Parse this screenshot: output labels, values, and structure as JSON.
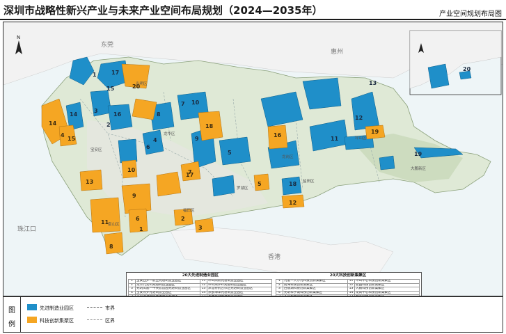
{
  "title": "深圳市战略性新兴产业与未来产业空间布局规划（2024—2035年）",
  "subtitle": "产业空间规划布局图",
  "colors": {
    "advanced": "#1f8fc9",
    "tech": "#f5a623",
    "land": "#dfe9d6",
    "sea": "#eef5f7"
  },
  "map_labels": {
    "pearl_river": "珠江口",
    "dongguan": "东莞",
    "huizhou": "惠州",
    "hongkong": "香港",
    "hk_sea": "珠江",
    "districts": [
      "宝安区",
      "光明区",
      "南山区",
      "福田区",
      "罗湖区",
      "龙华区",
      "龙岗区",
      "坪山区",
      "盐田区",
      "大鹏新区"
    ]
  },
  "advanced_labels": [
    "1",
    "2",
    "3",
    "4",
    "5",
    "6",
    "7",
    "8",
    "9",
    "10",
    "11",
    "12",
    "13",
    "14",
    "15",
    "16",
    "17",
    "18",
    "19",
    "20"
  ],
  "tech_labels": [
    "1",
    "2",
    "3",
    "4",
    "5",
    "6",
    "7",
    "8",
    "9",
    "10",
    "11",
    "12",
    "13",
    "14",
    "15",
    "16",
    "17",
    "18",
    "19",
    "20"
  ],
  "lists": {
    "advanced_title": "20大先进制造业园区",
    "advanced": [
      "宝安西乡—航空先进制造业园区",
      "龙华九龙山先进制造业园区",
      "光明凤凰—中央智造园先进制造业园区",
      "宝安燕罗先进制造业园区",
      "大运深港国际先进制造业园区",
      "南山留仙洞先进制造业园区",
      "宝安石岩先进制造业园区",
      "龙华观澜先进制造业园区",
      "光明马田先进制造业园区",
      "龙岗宝龙先进制造业园区",
      "坪山高新先进制造业园区",
      "坪山燕子岭先进制造业园区",
      "深汕特别合作区先进制造业园区",
      "东部海洋先进制造业园区",
      "宝安空港先进制造业园区",
      "光明先进制造业园区",
      "龙岗平湖先进制造业园区",
      "龙华新澜先进制造业园区",
      "坪地先进制造业园区",
      "深汕智造城先进制造业园区"
    ],
    "tech_title": "20大科技创新集聚区",
    "tech": [
      "河套—大沙河科技创新集聚区",
      "前海科技创新集聚区",
      "西丽湖科技创新集聚区",
      "光明科学城科技创新集聚区",
      "大运科技创新集聚区",
      "深圳湾科技创新集聚区",
      "沙河科技创新集聚区",
      "福田中心科技创新集聚区",
      "宝安中心科技创新集聚区",
      "龙华中心科技创新集聚区",
      "坪山中心科技创新集聚区",
      "盐田科技创新集聚区",
      "大鹏科技创新集聚区",
      "龙岗中心科技创新集聚区",
      "石岩科技创新集聚区",
      "松山湖协同创新集聚区",
      "罗湖科技创新集聚区",
      "前海蛇口科技创新集聚区",
      "坪山科学城科技创新集聚区",
      "深汕科技创新集聚区"
    ]
  },
  "legend": {
    "head_top": "图",
    "head_bottom": "例",
    "advanced": "先进制造业园区",
    "tech": "科技创新集聚区",
    "city_boundary": "市界",
    "district_boundary": "区界"
  }
}
